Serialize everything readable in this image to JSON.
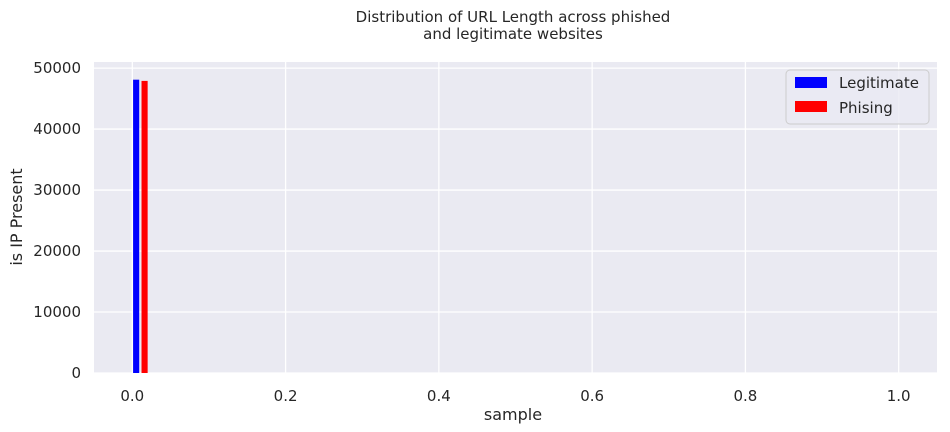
{
  "chart_data": {
    "type": "bar",
    "title": [
      "Distribution of URL Length across phished",
      "and legitimate websites"
    ],
    "xlabel": "sample",
    "ylabel": "is IP Present",
    "xlim": [
      -0.05,
      1.05
    ],
    "ylim": [
      0,
      51000
    ],
    "xticks": [
      0.0,
      0.2,
      0.4,
      0.6,
      0.8,
      1.0
    ],
    "xtick_labels": [
      "0.0",
      "0.2",
      "0.4",
      "0.6",
      "0.8",
      "1.0"
    ],
    "yticks": [
      0,
      10000,
      20000,
      30000,
      40000,
      50000
    ],
    "ytick_labels": [
      "0",
      "10000",
      "20000",
      "30000",
      "40000",
      "50000"
    ],
    "grid": true,
    "legend_position": "top-right",
    "bar_width": 0.008,
    "series": [
      {
        "name": "Legitimate",
        "color": "#0000ff",
        "x": 0.005,
        "value": 48100
      },
      {
        "name": "Phising",
        "color": "#ff0000",
        "x": 0.016,
        "value": 47900
      }
    ]
  }
}
